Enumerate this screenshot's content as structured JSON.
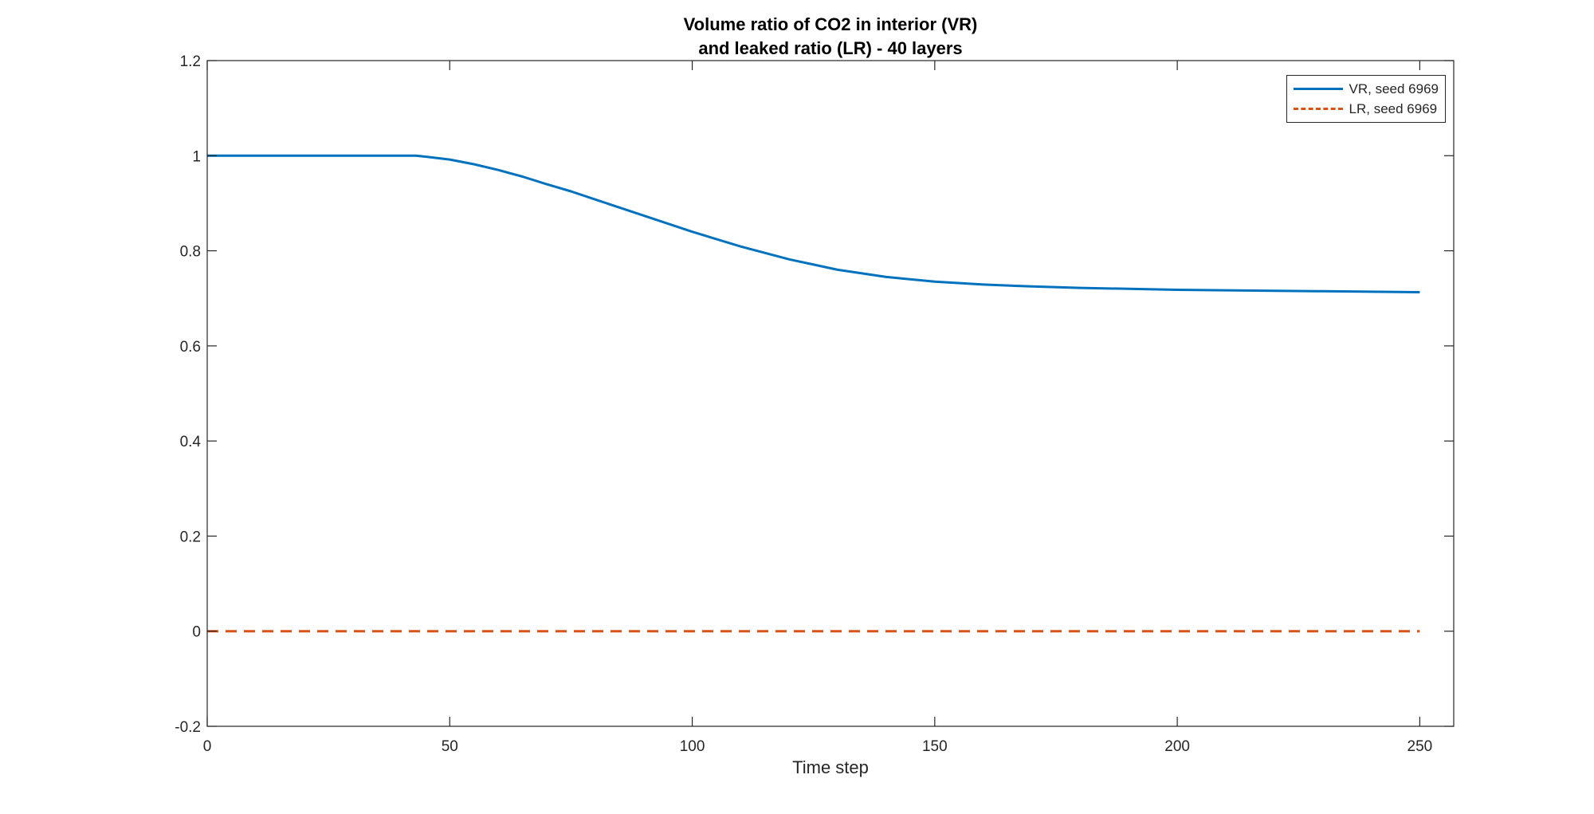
{
  "chart_data": {
    "type": "line",
    "title_lines": [
      "Volume ratio of CO2 in interior (VR)",
      "and leaked ratio (LR) - 40 layers"
    ],
    "xlabel": "Time step",
    "ylabel": "",
    "xlim": [
      0,
      257
    ],
    "ylim": [
      -0.2,
      1.2
    ],
    "xticks": [
      0,
      50,
      100,
      150,
      200,
      250
    ],
    "yticks": [
      -0.2,
      0,
      0.2,
      0.4,
      0.6,
      0.8,
      1,
      1.2
    ],
    "xtick_labels": [
      "0",
      "50",
      "100",
      "150",
      "200",
      "250"
    ],
    "ytick_labels": [
      "-0.2",
      "0",
      "0.2",
      "0.4",
      "0.6",
      "0.8",
      "1",
      "1.2"
    ],
    "grid": false,
    "legend_position": "top-right",
    "series": [
      {
        "name": "VR, seed 6969",
        "color": "#0072BD",
        "style": "solid",
        "x": [
          0,
          10,
          20,
          30,
          40,
          43,
          45,
          50,
          55,
          60,
          65,
          70,
          75,
          80,
          90,
          100,
          110,
          120,
          130,
          140,
          150,
          160,
          170,
          180,
          190,
          200,
          210,
          220,
          230,
          240,
          250
        ],
        "y": [
          1.0,
          1.0,
          1.0,
          1.0,
          1.0,
          1.0,
          0.998,
          0.992,
          0.982,
          0.97,
          0.956,
          0.94,
          0.925,
          0.908,
          0.874,
          0.84,
          0.809,
          0.782,
          0.76,
          0.745,
          0.735,
          0.729,
          0.725,
          0.722,
          0.72,
          0.718,
          0.717,
          0.716,
          0.715,
          0.714,
          0.713
        ]
      },
      {
        "name": "LR, seed 6969",
        "color": "#D95319",
        "style": "dashed",
        "x": [
          0,
          250
        ],
        "y": [
          0,
          0
        ]
      }
    ]
  }
}
